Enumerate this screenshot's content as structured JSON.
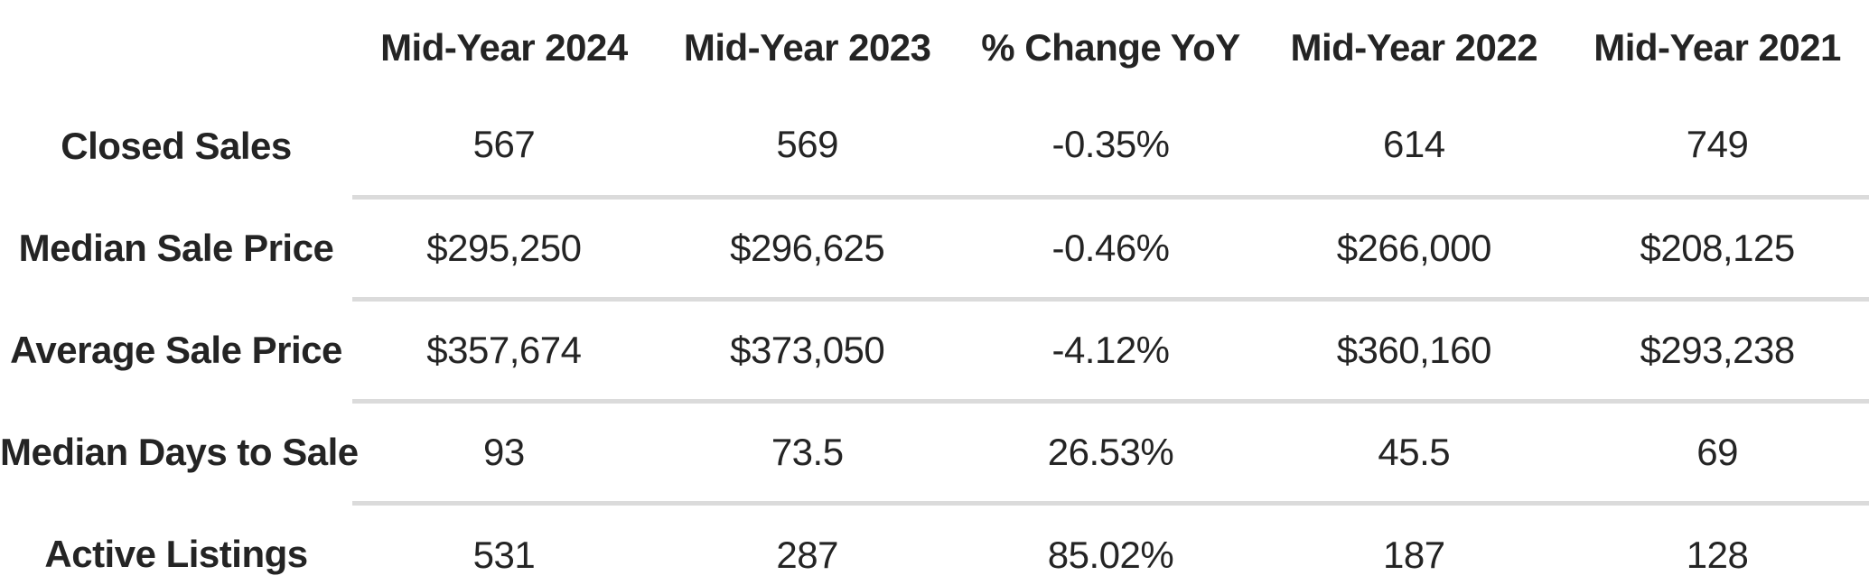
{
  "colors": {
    "background": "#ffffff",
    "text": "#242424",
    "divider": "#dbdbdb"
  },
  "chart_data": {
    "type": "table",
    "columns": [
      "",
      "Mid-Year 2024",
      "Mid-Year 2023",
      "% Change YoY",
      "Mid-Year 2022",
      "Mid-Year 2021"
    ],
    "rows": [
      {
        "label": "Closed Sales",
        "values": [
          "567",
          "569",
          "-0.35%",
          "614",
          "749"
        ]
      },
      {
        "label": "Median Sale Price",
        "values": [
          "$295,250",
          "$296,625",
          "-0.46%",
          "$266,000",
          "$208,125"
        ]
      },
      {
        "label": "Average Sale Price",
        "values": [
          "$357,674",
          "$373,050",
          "-4.12%",
          "$360,160",
          "$293,238"
        ]
      },
      {
        "label": "Median Days to Sale",
        "values": [
          "93",
          "73.5",
          "26.53%",
          "45.5",
          "69"
        ]
      },
      {
        "label": "Active Listings",
        "values": [
          "531",
          "287",
          "85.02%",
          "187",
          "128"
        ]
      }
    ]
  }
}
